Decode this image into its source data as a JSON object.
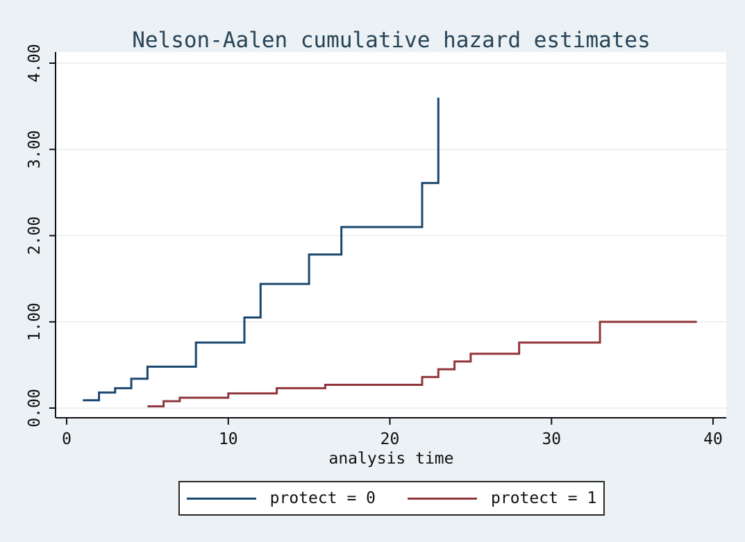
{
  "title": "Nelson-Aalen cumulative hazard estimates",
  "x_axis": {
    "label": "analysis time"
  },
  "legend": {
    "items": [
      {
        "label": "protect = 0",
        "color": "#1a476f"
      },
      {
        "label": "protect = 1",
        "color": "#90353b"
      }
    ]
  },
  "colors": {
    "canvas_background": "#ebf1f4",
    "plot_background": "#ffffff",
    "gridline": "#e6ecee",
    "axis": "#101010",
    "title_text": "#274357"
  },
  "chart_data": {
    "type": "line",
    "subtype": "step",
    "title": "Nelson-Aalen cumulative hazard estimates",
    "xlabel": "analysis time",
    "ylabel": "",
    "xlim": [
      0,
      40
    ],
    "ylim": [
      0,
      4
    ],
    "grid": "horizontal",
    "legend_position": "bottom-center",
    "x_ticks": [
      {
        "value": 0,
        "label": "0"
      },
      {
        "value": 10,
        "label": "10"
      },
      {
        "value": 20,
        "label": "20"
      },
      {
        "value": 30,
        "label": "30"
      },
      {
        "value": 40,
        "label": "40"
      }
    ],
    "y_ticks": [
      {
        "value": 0,
        "label": "0.00"
      },
      {
        "value": 1,
        "label": "1.00"
      },
      {
        "value": 2,
        "label": "2.00"
      },
      {
        "value": 3,
        "label": "3.00"
      },
      {
        "value": 4,
        "label": "4.00"
      }
    ],
    "series": [
      {
        "name": "protect = 0",
        "color": "#1a476f",
        "steps": [
          [
            1,
            0.09
          ],
          [
            2,
            0.18
          ],
          [
            3,
            0.23
          ],
          [
            4,
            0.34
          ],
          [
            5,
            0.48
          ],
          [
            8,
            0.76
          ],
          [
            11,
            1.05
          ],
          [
            12,
            1.44
          ],
          [
            15,
            1.78
          ],
          [
            17,
            2.1
          ],
          [
            22,
            2.61
          ],
          [
            23,
            3.6
          ]
        ],
        "end_x": 23
      },
      {
        "name": "protect = 1",
        "color": "#90353b",
        "steps": [
          [
            5,
            0.02
          ],
          [
            6,
            0.08
          ],
          [
            7,
            0.12
          ],
          [
            10,
            0.17
          ],
          [
            13,
            0.23
          ],
          [
            16,
            0.27
          ],
          [
            22,
            0.36
          ],
          [
            23,
            0.45
          ],
          [
            24,
            0.54
          ],
          [
            25,
            0.63
          ],
          [
            28,
            0.76
          ],
          [
            33,
            1.0
          ]
        ],
        "end_x": 39
      }
    ]
  }
}
